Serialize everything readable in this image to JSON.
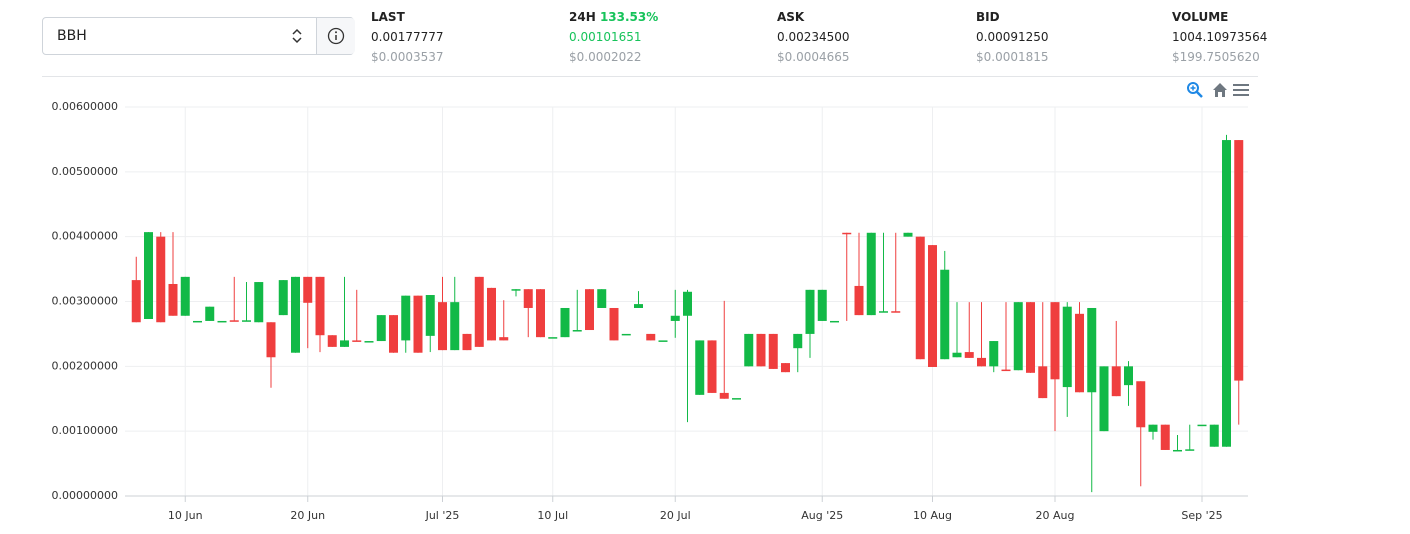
{
  "selector": {
    "value": "BBH"
  },
  "stats": [
    {
      "label": "LAST",
      "value": "0.00177777",
      "usd": "$0.0003537"
    },
    {
      "label": "24H",
      "change": "133.53%",
      "value": "0.00101651",
      "usd": "$0.0002022"
    },
    {
      "label": "ASK",
      "value": "0.00234500",
      "usd": "$0.0004665"
    },
    {
      "label": "BID",
      "value": "0.00091250",
      "usd": "$0.0001815"
    },
    {
      "label": "VOLUME",
      "value": "1004.10973564",
      "usd": "$199.7505620"
    }
  ],
  "chart_data": {
    "type": "candlestick",
    "up_color": "#12b947",
    "down_color": "#ef3e3e",
    "grid": true,
    "xlim": [
      "2025-06-05",
      "2025-09-05"
    ],
    "xticks": [
      {
        "value": "2025-06-10",
        "label": "10 Jun"
      },
      {
        "value": "2025-06-20",
        "label": "20 Jun"
      },
      {
        "value": "2025-07-01",
        "label": "Jul '25"
      },
      {
        "value": "2025-07-10",
        "label": "10 Jul"
      },
      {
        "value": "2025-07-20",
        "label": "20 Jul"
      },
      {
        "value": "2025-08-01",
        "label": "Aug '25"
      },
      {
        "value": "2025-08-10",
        "label": "10 Aug"
      },
      {
        "value": "2025-08-20",
        "label": "20 Aug"
      },
      {
        "value": "2025-09-01",
        "label": "Sep '25"
      }
    ],
    "ylim": [
      0,
      0.006
    ],
    "yticks": [
      {
        "value": 0,
        "label": "0.00000000"
      },
      {
        "value": 0.001,
        "label": "0.00100000"
      },
      {
        "value": 0.002,
        "label": "0.00200000"
      },
      {
        "value": 0.003,
        "label": "0.00300000"
      },
      {
        "value": 0.004,
        "label": "0.00400000"
      },
      {
        "value": 0.005,
        "label": "0.00500000"
      },
      {
        "value": 0.006,
        "label": "0.00600000"
      }
    ],
    "x": [
      "2025-06-06",
      "2025-06-07",
      "2025-06-08",
      "2025-06-09",
      "2025-06-10",
      "2025-06-11",
      "2025-06-12",
      "2025-06-13",
      "2025-06-14",
      "2025-06-15",
      "2025-06-16",
      "2025-06-17",
      "2025-06-18",
      "2025-06-19",
      "2025-06-20",
      "2025-06-21",
      "2025-06-22",
      "2025-06-23",
      "2025-06-24",
      "2025-06-25",
      "2025-06-26",
      "2025-06-27",
      "2025-06-28",
      "2025-06-29",
      "2025-06-30",
      "2025-07-01",
      "2025-07-02",
      "2025-07-03",
      "2025-07-04",
      "2025-07-05",
      "2025-07-06",
      "2025-07-07",
      "2025-07-08",
      "2025-07-09",
      "2025-07-10",
      "2025-07-11",
      "2025-07-12",
      "2025-07-13",
      "2025-07-14",
      "2025-07-15",
      "2025-07-16",
      "2025-07-17",
      "2025-07-18",
      "2025-07-19",
      "2025-07-20",
      "2025-07-21",
      "2025-07-22",
      "2025-07-23",
      "2025-07-24",
      "2025-07-25",
      "2025-07-26",
      "2025-07-27",
      "2025-07-28",
      "2025-07-29",
      "2025-07-30",
      "2025-07-31",
      "2025-08-01",
      "2025-08-02",
      "2025-08-03",
      "2025-08-04",
      "2025-08-05",
      "2025-08-06",
      "2025-08-07",
      "2025-08-08",
      "2025-08-09",
      "2025-08-10",
      "2025-08-11",
      "2025-08-12",
      "2025-08-13",
      "2025-08-14",
      "2025-08-15",
      "2025-08-16",
      "2025-08-17",
      "2025-08-18",
      "2025-08-19",
      "2025-08-20",
      "2025-08-21",
      "2025-08-22",
      "2025-08-23",
      "2025-08-24",
      "2025-08-25",
      "2025-08-26",
      "2025-08-27",
      "2025-08-28",
      "2025-08-29",
      "2025-08-30",
      "2025-08-31",
      "2025-09-01",
      "2025-09-02",
      "2025-09-03",
      "2025-09-04"
    ],
    "ohlc": [
      [
        0.00333,
        0.00369,
        0.00268,
        0.00268
      ],
      [
        0.00273,
        0.00407,
        0.00273,
        0.00407
      ],
      [
        0.004,
        0.00407,
        0.00268,
        0.00268
      ],
      [
        0.00327,
        0.00407,
        0.00278,
        0.00278
      ],
      [
        0.00278,
        0.00338,
        0.00278,
        0.00338
      ],
      [
        0.0027,
        0.0027,
        0.0027,
        0.0027
      ],
      [
        0.0027,
        0.00292,
        0.0027,
        0.00292
      ],
      [
        0.0027,
        0.0027,
        0.0027,
        0.0027
      ],
      [
        0.00271,
        0.00338,
        0.0027,
        0.0027
      ],
      [
        0.0027,
        0.0033,
        0.0027,
        0.00271
      ],
      [
        0.00268,
        0.0033,
        0.00268,
        0.0033
      ],
      [
        0.00268,
        0.00268,
        0.00167,
        0.00214
      ],
      [
        0.00279,
        0.00333,
        0.00279,
        0.00333
      ],
      [
        0.00221,
        0.00338,
        0.00221,
        0.00338
      ],
      [
        0.00338,
        0.00338,
        0.00228,
        0.00298
      ],
      [
        0.00338,
        0.00338,
        0.00222,
        0.00248
      ],
      [
        0.00248,
        0.00248,
        0.0023,
        0.0023
      ],
      [
        0.0023,
        0.00338,
        0.0023,
        0.0024
      ],
      [
        0.0024,
        0.00318,
        0.00239,
        0.00239
      ],
      [
        0.00239,
        0.00239,
        0.00239,
        0.00239
      ],
      [
        0.00239,
        0.00279,
        0.00239,
        0.00279
      ],
      [
        0.00279,
        0.00279,
        0.00221,
        0.00221
      ],
      [
        0.0024,
        0.00309,
        0.00221,
        0.00309
      ],
      [
        0.00309,
        0.00309,
        0.00221,
        0.00221
      ],
      [
        0.00247,
        0.0031,
        0.00222,
        0.0031
      ],
      [
        0.00299,
        0.00338,
        0.00225,
        0.00225
      ],
      [
        0.00225,
        0.00338,
        0.00225,
        0.00299
      ],
      [
        0.0025,
        0.0025,
        0.00225,
        0.00225
      ],
      [
        0.00338,
        0.00338,
        0.0023,
        0.0023
      ],
      [
        0.00321,
        0.00321,
        0.0024,
        0.0024
      ],
      [
        0.00245,
        0.00302,
        0.0024,
        0.0024
      ],
      [
        0.00318,
        0.00319,
        0.00308,
        0.00319
      ],
      [
        0.00319,
        0.00319,
        0.00245,
        0.0029
      ],
      [
        0.00319,
        0.00319,
        0.00245,
        0.00245
      ],
      [
        0.00245,
        0.00245,
        0.00245,
        0.00245
      ],
      [
        0.00245,
        0.0029,
        0.00245,
        0.0029
      ],
      [
        0.00255,
        0.00318,
        0.00255,
        0.00256
      ],
      [
        0.00319,
        0.00319,
        0.00256,
        0.00256
      ],
      [
        0.0029,
        0.00319,
        0.0029,
        0.00319
      ],
      [
        0.0029,
        0.0029,
        0.0024,
        0.0024
      ],
      [
        0.0025,
        0.0025,
        0.0025,
        0.0025
      ],
      [
        0.0029,
        0.00316,
        0.0029,
        0.00296
      ],
      [
        0.0025,
        0.0025,
        0.0024,
        0.0024
      ],
      [
        0.0024,
        0.0024,
        0.0024,
        0.0024
      ],
      [
        0.0027,
        0.00318,
        0.00244,
        0.00278
      ],
      [
        0.00278,
        0.00318,
        0.00114,
        0.00315
      ],
      [
        0.00156,
        0.0024,
        0.00156,
        0.0024
      ],
      [
        0.0024,
        0.0024,
        0.00159,
        0.00159
      ],
      [
        0.00159,
        0.00301,
        0.0015,
        0.0015
      ],
      [
        0.00151,
        0.00151,
        0.00151,
        0.00151
      ],
      [
        0.002,
        0.0025,
        0.002,
        0.0025
      ],
      [
        0.0025,
        0.0025,
        0.002,
        0.002
      ],
      [
        0.0025,
        0.0025,
        0.00196,
        0.00196
      ],
      [
        0.00205,
        0.00205,
        0.00191,
        0.00191
      ],
      [
        0.00228,
        0.0025,
        0.00191,
        0.0025
      ],
      [
        0.0025,
        0.00318,
        0.00213,
        0.00318
      ],
      [
        0.0027,
        0.00318,
        0.0027,
        0.00318
      ],
      [
        0.0027,
        0.0027,
        0.0027,
        0.0027
      ],
      [
        0.00406,
        0.00406,
        0.0027,
        0.00405
      ],
      [
        0.00324,
        0.00406,
        0.00279,
        0.00279
      ],
      [
        0.00279,
        0.00406,
        0.00279,
        0.00406
      ],
      [
        0.00284,
        0.00406,
        0.00284,
        0.00285
      ],
      [
        0.00285,
        0.00406,
        0.00284,
        0.00284
      ],
      [
        0.004,
        0.00406,
        0.004,
        0.00406
      ],
      [
        0.004,
        0.004,
        0.00211,
        0.00211
      ],
      [
        0.00387,
        0.00387,
        0.00199,
        0.00199
      ],
      [
        0.00211,
        0.00378,
        0.00211,
        0.00349
      ],
      [
        0.00214,
        0.00299,
        0.00214,
        0.00221
      ],
      [
        0.00222,
        0.00299,
        0.00213,
        0.00213
      ],
      [
        0.00213,
        0.00299,
        0.002,
        0.002
      ],
      [
        0.002,
        0.00239,
        0.00191,
        0.00239
      ],
      [
        0.00195,
        0.00299,
        0.00194,
        0.00194
      ],
      [
        0.00194,
        0.00299,
        0.00194,
        0.00299
      ],
      [
        0.00299,
        0.00299,
        0.0019,
        0.0019
      ],
      [
        0.002,
        0.00299,
        0.00151,
        0.00151
      ],
      [
        0.00299,
        0.00299,
        0.001,
        0.0018
      ],
      [
        0.00168,
        0.00299,
        0.00122,
        0.00292
      ],
      [
        0.00281,
        0.00299,
        0.0016,
        0.0016
      ],
      [
        0.0016,
        0.0029,
        6e-05,
        0.0029
      ],
      [
        0.001,
        0.002,
        0.001,
        0.002
      ],
      [
        0.002,
        0.0027,
        0.00154,
        0.00154
      ],
      [
        0.00171,
        0.00208,
        0.00139,
        0.002
      ],
      [
        0.00177,
        0.00177,
        0.00015,
        0.00106
      ],
      [
        0.00099,
        0.0011,
        0.00087,
        0.0011
      ],
      [
        0.0011,
        0.0011,
        0.00071,
        0.00071
      ],
      [
        0.00071,
        0.00094,
        0.00071,
        0.00071
      ],
      [
        0.00071,
        0.0011,
        0.00071,
        0.00072
      ],
      [
        0.0011,
        0.0011,
        0.0011,
        0.0011
      ],
      [
        0.00076,
        0.0011,
        0.00076,
        0.0011
      ],
      [
        0.00076,
        0.00557,
        0.00076,
        0.00549
      ],
      [
        0.00549,
        0.00549,
        0.0011,
        0.00178
      ]
    ]
  }
}
